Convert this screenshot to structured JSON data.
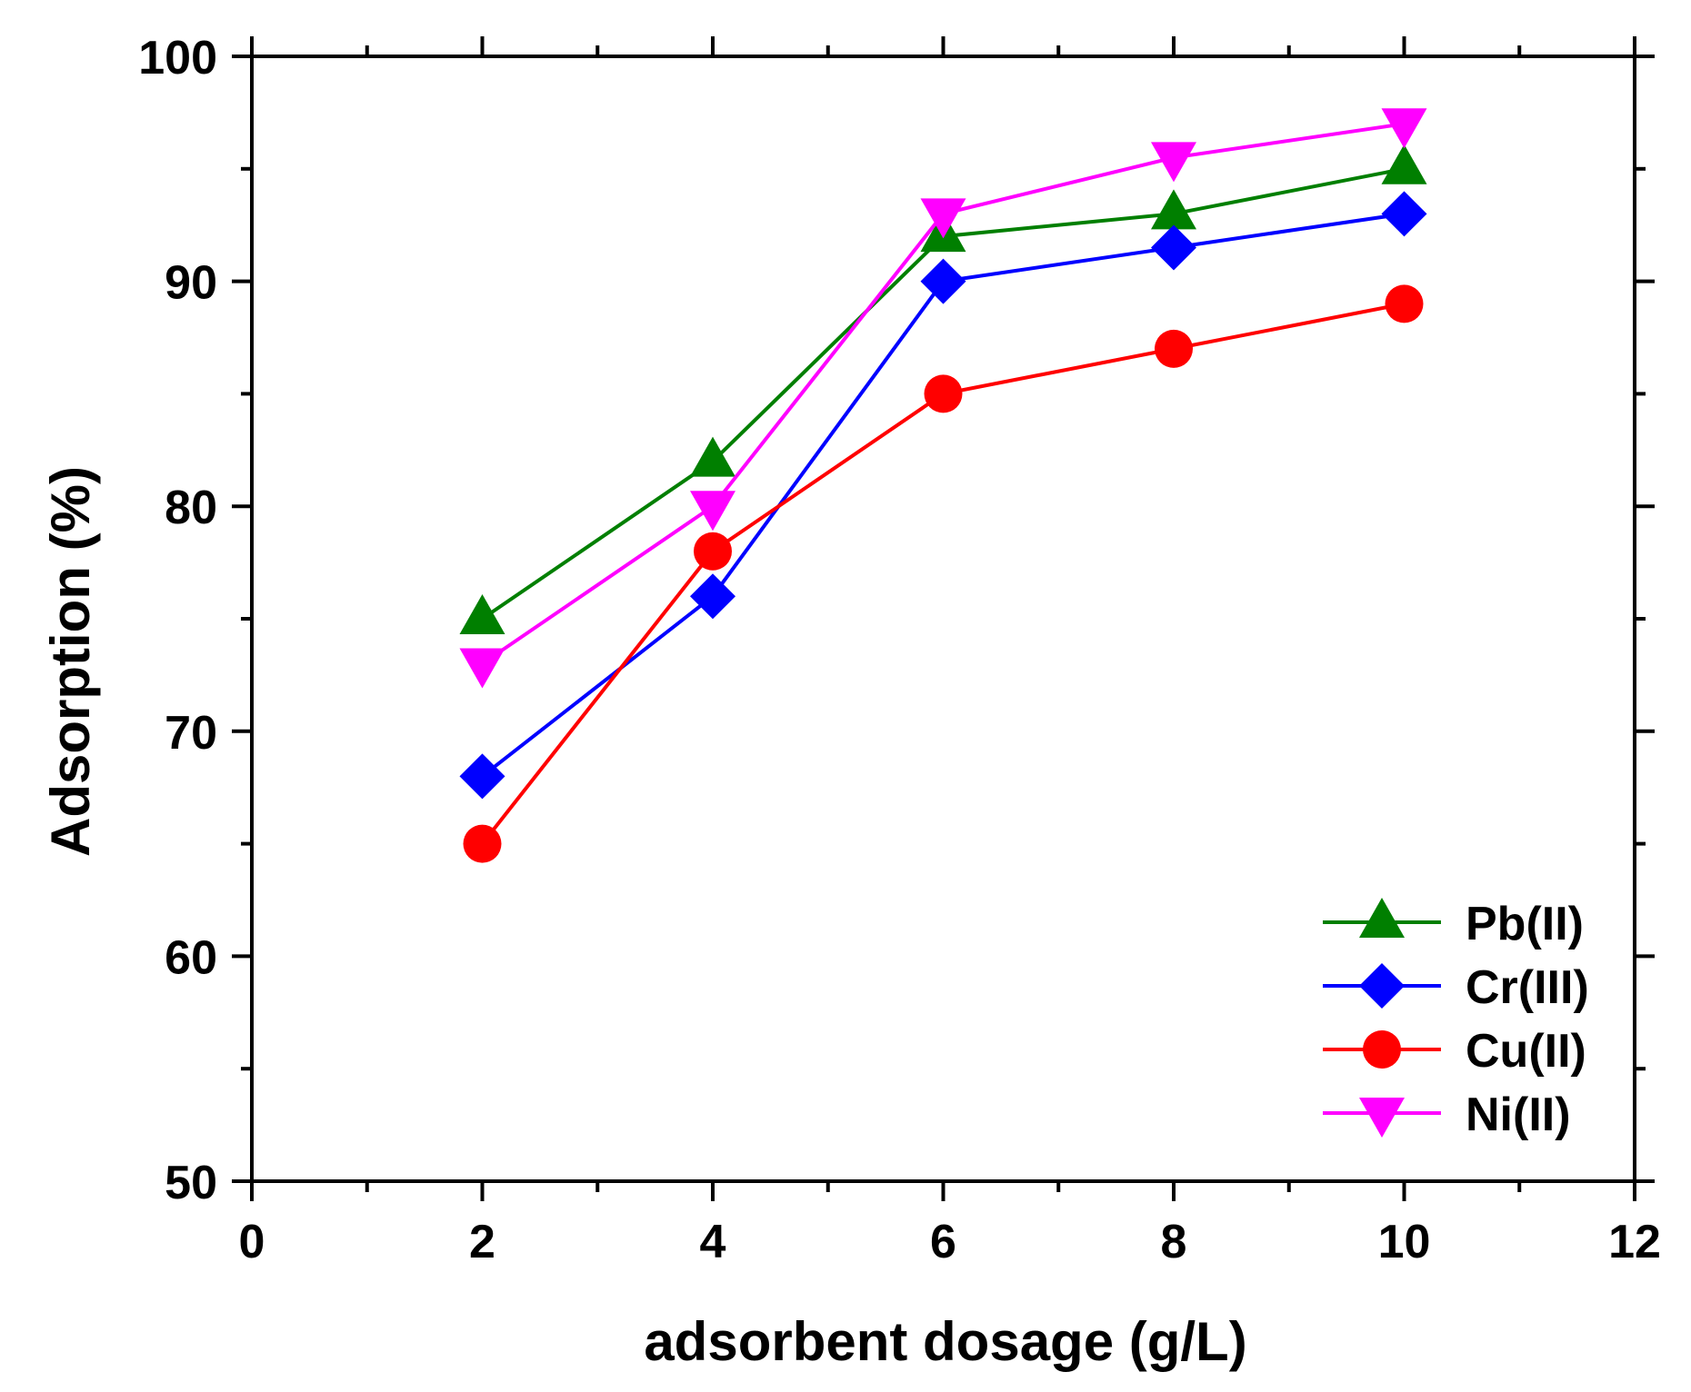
{
  "chart_data": {
    "type": "line",
    "xlabel": "adsorbent dosage (g/L)",
    "ylabel": "Adsorption (%)",
    "xlim": [
      0,
      12
    ],
    "ylim": [
      50,
      100
    ],
    "x_ticks": [
      "0",
      "2",
      "4",
      "6",
      "8",
      "10",
      "12"
    ],
    "y_ticks": [
      "50",
      "60",
      "70",
      "80",
      "90",
      "100"
    ],
    "x_tick_values": [
      0,
      2,
      4,
      6,
      8,
      10,
      12
    ],
    "y_tick_values": [
      50,
      60,
      70,
      80,
      90,
      100
    ],
    "x_minor_tick_values": [
      1,
      3,
      5,
      7,
      9,
      11
    ],
    "y_minor_tick_values": [
      55,
      65,
      75,
      85,
      95
    ],
    "grid": false,
    "legend_position": "bottom-right",
    "x": [
      2,
      4,
      6,
      8,
      10
    ],
    "series": [
      {
        "name": "Pb(II)",
        "color": "#007f00",
        "marker": "triangle-up",
        "values": [
          75,
          82,
          92,
          93,
          95
        ]
      },
      {
        "name": "Cr(III)",
        "color": "#0000ff",
        "marker": "diamond",
        "values": [
          68,
          76,
          90,
          91.5,
          93
        ]
      },
      {
        "name": "Cu(II)",
        "color": "#ff0000",
        "marker": "circle",
        "values": [
          65,
          78,
          85,
          87,
          89
        ]
      },
      {
        "name": "Ni(II)",
        "color": "#ff00ff",
        "marker": "triangle-down",
        "values": [
          73,
          80,
          93,
          95.5,
          97
        ]
      }
    ]
  }
}
